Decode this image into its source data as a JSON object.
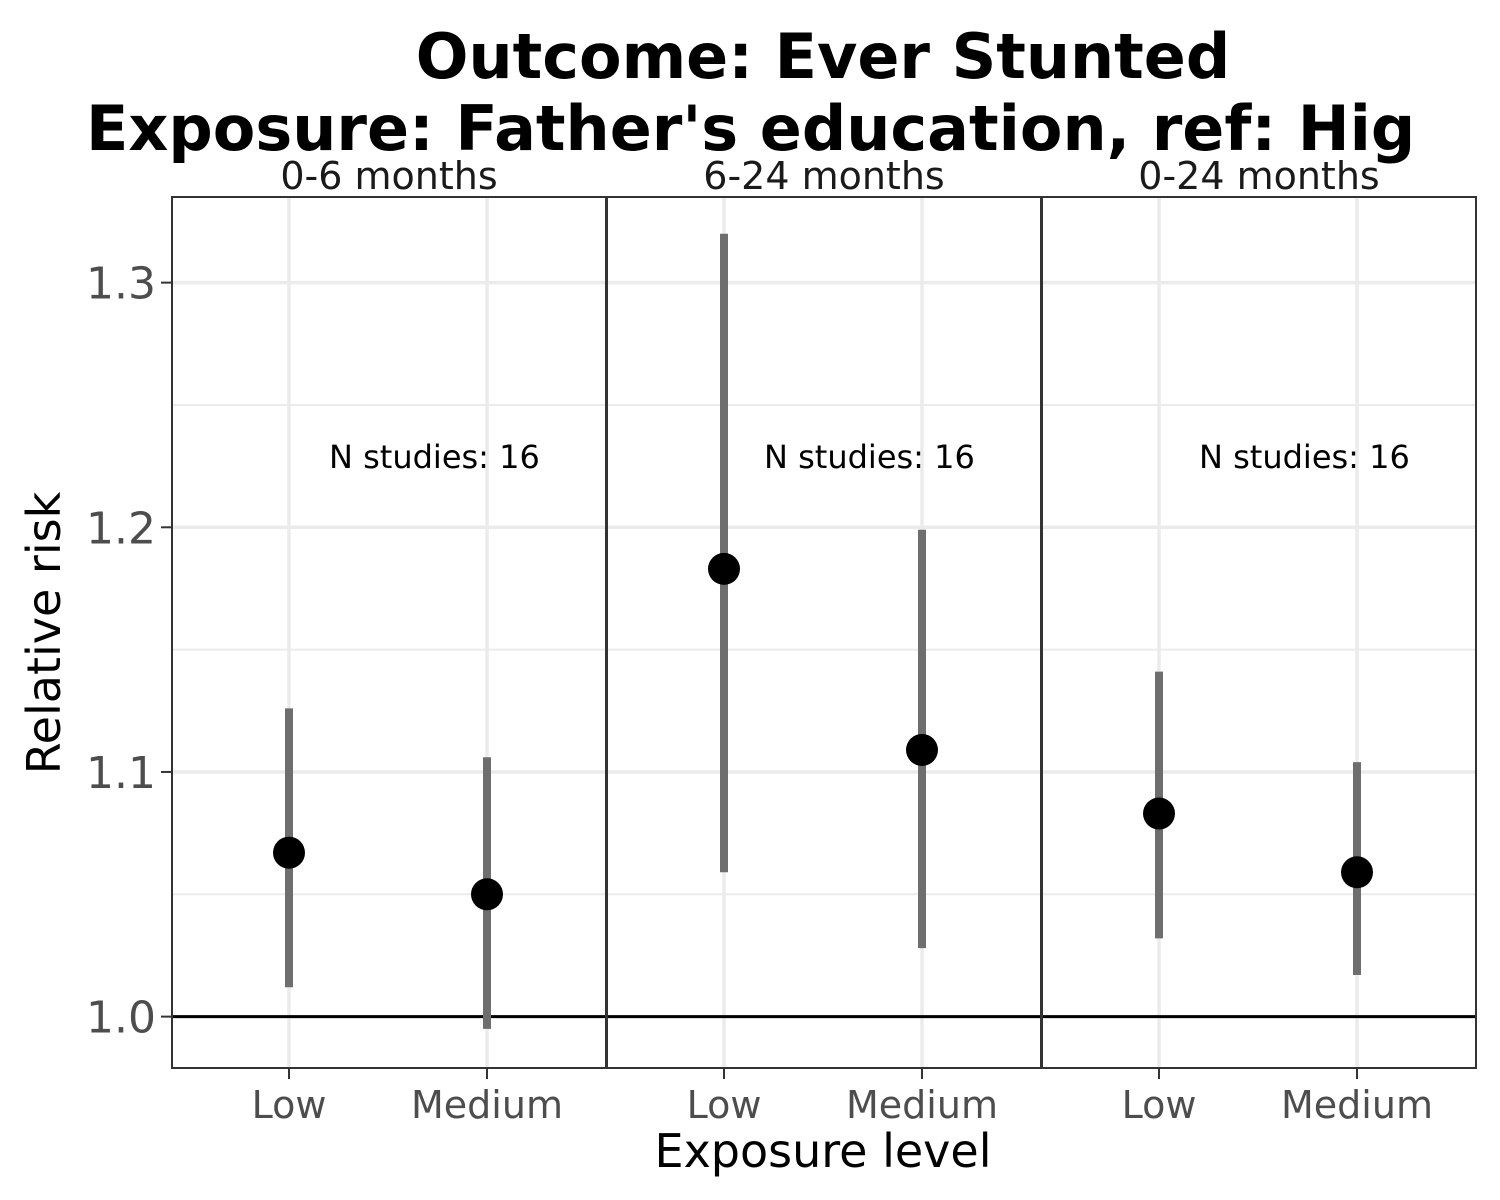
{
  "chart_data": {
    "type": "scatter",
    "title_lines": [
      "Outcome: Ever Stunted",
      "Exposure: Father's education, ref: Hig"
    ],
    "xlabel": "Exposure level",
    "ylabel": "Relative risk",
    "categories": [
      "Low",
      "Medium"
    ],
    "yticks": [
      "1.0",
      "1.1",
      "1.2",
      "1.3"
    ],
    "ylim": [
      0.979,
      1.335
    ],
    "reference_line": 1.0,
    "grid": true,
    "colors": {
      "point": "#000000",
      "interval": "#6e6e6e",
      "grid": "#ebebeb",
      "reference": "#000000"
    },
    "panels": [
      {
        "label": "0-6 months",
        "annotation": "N studies: 16",
        "points": [
          {
            "category": "Low",
            "estimate": 1.067,
            "lower": 1.012,
            "upper": 1.126
          },
          {
            "category": "Medium",
            "estimate": 1.05,
            "lower": 0.995,
            "upper": 1.106
          }
        ]
      },
      {
        "label": "6-24 months",
        "annotation": "N studies: 16",
        "points": [
          {
            "category": "Low",
            "estimate": 1.183,
            "lower": 1.059,
            "upper": 1.32
          },
          {
            "category": "Medium",
            "estimate": 1.109,
            "lower": 1.028,
            "upper": 1.199
          }
        ]
      },
      {
        "label": "0-24 months",
        "annotation": "N studies: 16",
        "points": [
          {
            "category": "Low",
            "estimate": 1.083,
            "lower": 1.032,
            "upper": 1.141
          },
          {
            "category": "Medium",
            "estimate": 1.059,
            "lower": 1.017,
            "upper": 1.104
          }
        ]
      }
    ]
  }
}
